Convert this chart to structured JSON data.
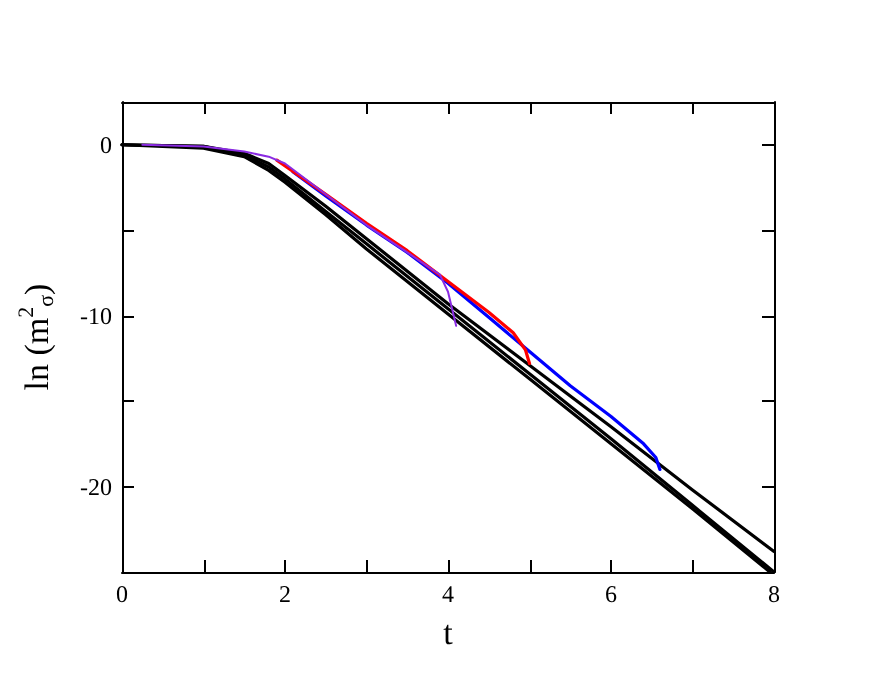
{
  "chart_data": {
    "type": "line",
    "xlabel": "t",
    "ylabel": "ln (m$^{2}$$_{σ}$)",
    "xlim": [
      0,
      8
    ],
    "ylim": [
      -25,
      2.5
    ],
    "xticks": [
      0,
      {
        "value": 1,
        "label": null
      },
      2,
      {
        "value": 3,
        "label": null
      },
      4,
      {
        "value": 5,
        "label": null
      },
      6,
      {
        "value": 7,
        "label": null
      },
      8
    ],
    "yticks": [
      {
        "value": -20,
        "label": "-20"
      },
      {
        "value": -15,
        "label": null
      },
      {
        "value": -10,
        "label": "-10"
      },
      {
        "value": -5,
        "label": null
      },
      0
    ],
    "grid": false,
    "marker": "none",
    "line_style": "solid",
    "series": [
      {
        "color": "#000000",
        "x": [
          0,
          1,
          1.5,
          1.8,
          2,
          2.5,
          3,
          4,
          5,
          6,
          7,
          8
        ],
        "values": [
          0,
          -0.1,
          -0.5,
          -1.1,
          -1.8,
          -3.6,
          -5.5,
          -9.3,
          -12.9,
          -16.5,
          -20.2,
          -23.8
        ]
      },
      {
        "color": "#000000",
        "x": [
          0,
          1,
          1.5,
          1.8,
          2,
          2.5,
          3,
          4,
          5,
          6,
          7,
          8
        ],
        "values": [
          0,
          -0.1,
          -0.6,
          -1.3,
          -2.0,
          -3.9,
          -5.8,
          -9.6,
          -13.4,
          -17.2,
          -21.1,
          -25
        ]
      },
      {
        "color": "#000000",
        "x": [
          0,
          1,
          1.5,
          1.8,
          2,
          2.5,
          3,
          4,
          5,
          6,
          7,
          7.95
        ],
        "values": [
          0,
          -0.2,
          -0.7,
          -1.5,
          -2.2,
          -4.1,
          -6.1,
          -9.9,
          -13.7,
          -17.5,
          -21.3,
          -25
        ]
      },
      {
        "color": "#0000ff",
        "x": [
          2.1,
          2.5,
          3,
          3.5,
          4,
          4.5,
          5,
          5.5,
          6,
          6.4,
          6.55,
          6.6
        ],
        "values": [
          -1.6,
          -3.0,
          -4.7,
          -6.3,
          -8.1,
          -10.1,
          -12.1,
          -14.1,
          -15.9,
          -17.5,
          -18.3,
          -19.0
        ]
      },
      {
        "color": "#ff0000",
        "x": [
          1.9,
          2.5,
          3,
          3.5,
          4,
          4.5,
          4.8,
          4.95,
          5.0
        ],
        "values": [
          -0.9,
          -2.9,
          -4.6,
          -6.2,
          -8.0,
          -9.8,
          -11.0,
          -12.0,
          -12.8
        ]
      },
      {
        "color": "#8a2be2",
        "x": [
          0.25,
          1,
          1.5,
          1.8,
          2,
          2.5,
          3,
          3.5,
          3.9,
          4.0,
          4.05,
          4.1
        ],
        "values": [
          0,
          -0.1,
          -0.4,
          -0.7,
          -1.1,
          -2.9,
          -4.7,
          -6.3,
          -7.6,
          -8.6,
          -9.6,
          -10.6
        ]
      }
    ]
  }
}
